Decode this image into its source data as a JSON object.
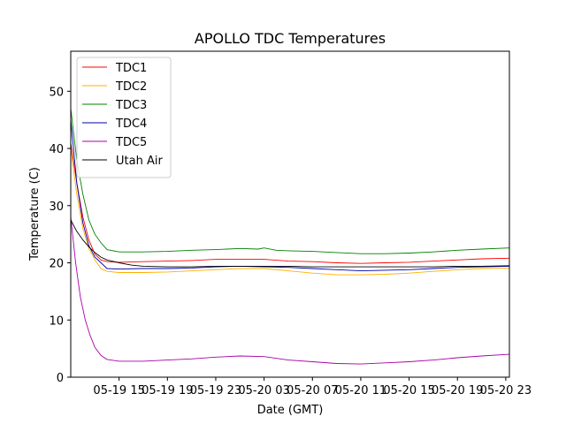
{
  "chart_data": {
    "type": "line",
    "title": "APOLLO TDC Temperatures",
    "xlabel": "Date (GMT)",
    "ylabel": "Temperature (C)",
    "x_unit": "hours since 05-19 11:00 GMT",
    "xlim": [
      0,
      36.3
    ],
    "ylim": [
      0,
      57
    ],
    "grid": false,
    "legend_position": "top-left",
    "x_ticks": [
      {
        "x": 4,
        "label": "05-19 15"
      },
      {
        "x": 8,
        "label": "05-19 19"
      },
      {
        "x": 12,
        "label": "05-19 23"
      },
      {
        "x": 16,
        "label": "05-20 03"
      },
      {
        "x": 20,
        "label": "05-20 07"
      },
      {
        "x": 24,
        "label": "05-20 11"
      },
      {
        "x": 28,
        "label": "05-20 15"
      },
      {
        "x": 32,
        "label": "05-20 19"
      },
      {
        "x": 36,
        "label": "05-20 23"
      }
    ],
    "y_ticks": [
      0,
      10,
      20,
      30,
      40,
      50
    ],
    "series": [
      {
        "name": "TDC1",
        "color": "#ff0000",
        "x": [
          0,
          0.5,
          1,
          1.5,
          2,
          2.5,
          3,
          4,
          6,
          8,
          10,
          12,
          14,
          16,
          18,
          20,
          22,
          24,
          26,
          28,
          30,
          32,
          34,
          36.3
        ],
        "y": [
          41,
          34,
          28,
          24,
          21.5,
          20.5,
          20.2,
          20.1,
          20.2,
          20.3,
          20.4,
          20.6,
          20.6,
          20.6,
          20.3,
          20.2,
          20.0,
          19.9,
          20.0,
          20.1,
          20.3,
          20.5,
          20.7,
          20.8
        ]
      },
      {
        "name": "TDC2",
        "color": "#ffb000",
        "x": [
          0,
          0.5,
          1,
          1.5,
          2,
          2.5,
          3,
          4,
          6,
          8,
          10,
          12,
          14,
          16,
          18,
          20,
          22,
          24,
          26,
          28,
          30,
          32,
          34,
          36.3
        ],
        "y": [
          40,
          32,
          26,
          22.5,
          20.5,
          19,
          18.5,
          18.3,
          18.3,
          18.4,
          18.6,
          18.8,
          19.0,
          19.0,
          18.6,
          18.2,
          17.9,
          17.9,
          18.0,
          18.2,
          18.5,
          18.8,
          19.0,
          19.1
        ]
      },
      {
        "name": "TDC3",
        "color": "#008000",
        "x": [
          0,
          0.5,
          1,
          1.5,
          2,
          2.5,
          3,
          4,
          6,
          8,
          10,
          12,
          14,
          15.5,
          16,
          17,
          18,
          20,
          22,
          24,
          26,
          28,
          30,
          32,
          34,
          36.3
        ],
        "y": [
          47,
          38,
          32,
          27.5,
          25,
          23.5,
          22.3,
          21.9,
          21.9,
          22.0,
          22.2,
          22.3,
          22.5,
          22.4,
          22.6,
          22.2,
          22.1,
          22.0,
          21.8,
          21.6,
          21.6,
          21.7,
          21.9,
          22.2,
          22.4,
          22.6
        ]
      },
      {
        "name": "TDC4",
        "color": "#0000b0",
        "x": [
          0,
          0.5,
          1,
          1.5,
          2,
          2.5,
          3,
          4,
          6,
          8,
          10,
          12,
          14,
          16,
          18,
          20,
          22,
          24,
          26,
          28,
          30,
          32,
          34,
          36.3
        ],
        "y": [
          45,
          34,
          27,
          23,
          21,
          20,
          19,
          18.9,
          19.0,
          19.0,
          19.1,
          19.3,
          19.4,
          19.3,
          19.2,
          19.0,
          18.8,
          18.6,
          18.7,
          18.8,
          19.0,
          19.2,
          19.3,
          19.4
        ]
      },
      {
        "name": "TDC5",
        "color": "#aa00aa",
        "x": [
          0,
          0.4,
          0.8,
          1.2,
          1.6,
          2,
          2.5,
          3,
          4,
          6,
          8,
          10,
          12,
          14,
          16,
          18,
          20,
          22,
          24,
          26,
          28,
          30,
          32,
          34,
          36.3
        ],
        "y": [
          28,
          20,
          14,
          10,
          7.3,
          5.2,
          3.8,
          3.1,
          2.8,
          2.8,
          3.0,
          3.2,
          3.5,
          3.7,
          3.6,
          3.0,
          2.7,
          2.4,
          2.3,
          2.5,
          2.7,
          3.0,
          3.4,
          3.7,
          4.0
        ]
      },
      {
        "name": "Utah Air",
        "color": "#000000",
        "x": [
          0,
          0.5,
          1,
          1.5,
          2,
          2.5,
          3,
          4,
          5,
          6,
          8,
          10,
          12,
          14,
          16,
          18,
          20,
          22,
          24,
          26,
          28,
          30,
          32,
          34,
          36.3
        ],
        "y": [
          27.5,
          25.5,
          24,
          22.8,
          21.8,
          21.0,
          20.5,
          20.0,
          19.6,
          19.4,
          19.3,
          19.3,
          19.4,
          19.4,
          19.4,
          19.4,
          19.3,
          19.3,
          19.3,
          19.3,
          19.3,
          19.3,
          19.4,
          19.4,
          19.5
        ]
      }
    ]
  }
}
